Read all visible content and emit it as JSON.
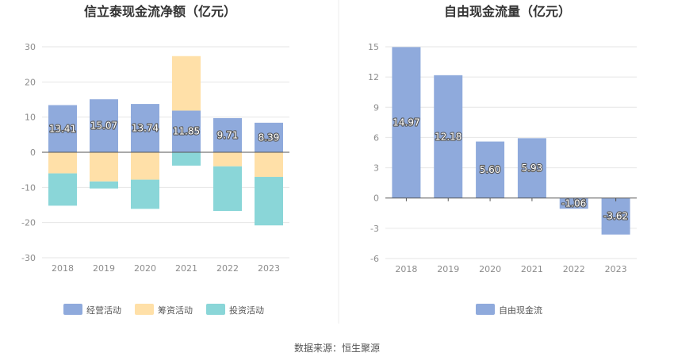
{
  "charts": [
    {
      "type": "bar",
      "stacked": true,
      "title": "信立泰现金流净额（亿元）",
      "categories": [
        "2018",
        "2019",
        "2020",
        "2021",
        "2022",
        "2023"
      ],
      "series": [
        {
          "name": "经营活动",
          "color": "#8faadc",
          "values": [
            13.41,
            15.07,
            13.74,
            11.85,
            9.71,
            8.39
          ]
        },
        {
          "name": "筹资活动",
          "color": "#ffe0a8",
          "values": [
            -6.0,
            -8.3,
            -7.8,
            15.5,
            -4.0,
            -7.0
          ]
        },
        {
          "name": "投资活动",
          "color": "#8ad6d8",
          "values": [
            -9.2,
            -2.0,
            -8.3,
            -3.8,
            -12.7,
            -13.8
          ]
        }
      ],
      "labeled_series": "经营活动",
      "ylim": [
        -30,
        30
      ],
      "yticks": [
        -30,
        -20,
        -10,
        0,
        10,
        20,
        30
      ],
      "legend_position": "bottom"
    },
    {
      "type": "bar",
      "title": "自由现金流量（亿元）",
      "categories": [
        "2018",
        "2019",
        "2020",
        "2021",
        "2022",
        "2023"
      ],
      "series": [
        {
          "name": "自由现金流",
          "color": "#8faadc",
          "values": [
            14.97,
            12.18,
            5.6,
            5.93,
            -1.06,
            -3.62
          ]
        }
      ],
      "labeled_series": "自由现金流",
      "ylim": [
        -6,
        15
      ],
      "yticks": [
        -6,
        -3,
        0,
        3,
        6,
        9,
        12,
        15
      ],
      "legend_position": "bottom"
    }
  ],
  "source_text": "数据来源：恒生聚源"
}
